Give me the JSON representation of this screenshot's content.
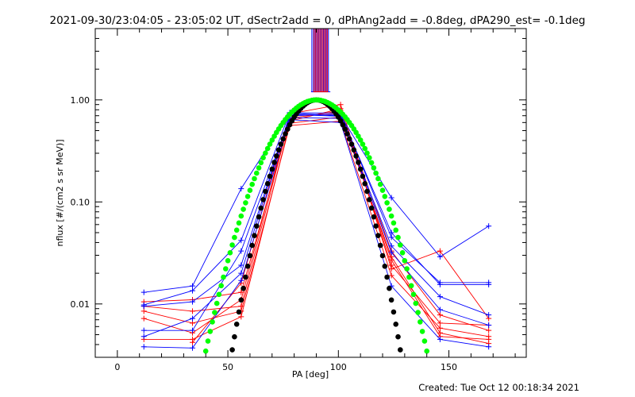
{
  "chart_data": {
    "type": "line",
    "title": "2021-09-30/23:04:05 - 23:05:02 UT, dSectr2add = 0, dPhAng2add = -0.8deg, dPA290_est= -0.1deg",
    "footer": "Created: Tue Oct 12 00:18:34 2021",
    "xlabel": "PA [deg]",
    "ylabel": "nflux [#/(cm2 s sr MeV)]",
    "xlim": [
      -10,
      185
    ],
    "ylim": [
      0.003,
      5
    ],
    "yscale": "log",
    "x_ticks": [
      0,
      50,
      100,
      150
    ],
    "x_tick_labels": [
      "0",
      "50",
      "100",
      "150"
    ],
    "y_ticks": [
      0.01,
      0.1,
      1.0
    ],
    "y_tick_labels": [
      "0.01",
      "0.10",
      "1.00"
    ],
    "grid": false,
    "legend": "none",
    "colors": {
      "sample_a": "#ff0000",
      "sample_b": "#0000ff",
      "fit_narrow": "#000000",
      "fit_wide": "#00ff00"
    },
    "series": [
      {
        "color": "#ff0000",
        "marker": "plus",
        "x": [
          12,
          34,
          56,
          78,
          101,
          124,
          146,
          168
        ],
        "y": [
          0.0105,
          0.011,
          0.013,
          0.62,
          0.82,
          0.024,
          0.0065,
          0.0062
        ]
      },
      {
        "color": "#ff0000",
        "marker": "plus",
        "x": [
          12,
          34,
          56,
          78,
          101,
          124,
          146,
          168
        ],
        "y": [
          0.0085,
          0.0065,
          0.0085,
          0.56,
          0.62,
          0.019,
          0.0058,
          0.0048
        ]
      },
      {
        "color": "#ff0000",
        "marker": "plus",
        "x": [
          12,
          34,
          56,
          78,
          101,
          124,
          146,
          168
        ],
        "y": [
          0.0072,
          0.0052,
          0.011,
          0.7,
          0.73,
          0.027,
          0.0048,
          0.0045
        ]
      },
      {
        "color": "#ff0000",
        "marker": "plus",
        "x": [
          12,
          34,
          56,
          78,
          101,
          124,
          146,
          168
        ],
        "y": [
          0.0095,
          0.0085,
          0.0095,
          0.66,
          0.78,
          0.033,
          0.0078,
          0.0055
        ]
      },
      {
        "color": "#ff0000",
        "marker": "plus",
        "x": [
          12,
          34,
          56,
          78,
          101,
          124,
          146,
          168
        ],
        "y": [
          0.0045,
          0.0045,
          0.0075,
          0.59,
          0.68,
          0.029,
          0.0052,
          0.0041
        ]
      },
      {
        "color": "#ff0000",
        "marker": "plus",
        "x": [
          34,
          56,
          78,
          101,
          124,
          146,
          168
        ],
        "y": [
          0.0042,
          0.016,
          0.73,
          0.9,
          0.022,
          0.033,
          0.0072
        ]
      },
      {
        "color": "#0000ff",
        "marker": "plus",
        "x": [
          12,
          34,
          56,
          78,
          101,
          124,
          146,
          168
        ],
        "y": [
          0.013,
          0.015,
          0.135,
          0.74,
          0.7,
          0.11,
          0.029,
          0.058
        ]
      },
      {
        "color": "#0000ff",
        "marker": "plus",
        "x": [
          12,
          34,
          56,
          78,
          101,
          124,
          146,
          168
        ],
        "y": [
          0.0095,
          0.0105,
          0.024,
          0.7,
          0.72,
          0.05,
          0.0155,
          0.0155
        ]
      },
      {
        "color": "#0000ff",
        "marker": "plus",
        "x": [
          12,
          34,
          56,
          78,
          101,
          124,
          146,
          168
        ],
        "y": [
          0.0055,
          0.0055,
          0.033,
          0.67,
          0.66,
          0.037,
          0.0118,
          0.0078
        ]
      },
      {
        "color": "#0000ff",
        "marker": "plus",
        "x": [
          12,
          34,
          56,
          78,
          101,
          124,
          146,
          168
        ],
        "y": [
          0.0038,
          0.0037,
          0.017,
          0.64,
          0.6,
          0.015,
          0.0045,
          0.0038
        ]
      },
      {
        "color": "#0000ff",
        "marker": "plus",
        "x": [
          12,
          34,
          56,
          78,
          101,
          124,
          146,
          168
        ],
        "y": [
          0.0048,
          0.0072,
          0.02,
          0.72,
          0.69,
          0.032,
          0.0088,
          0.0062
        ]
      },
      {
        "color": "#0000ff",
        "marker": "plus",
        "x": [
          12,
          34,
          56,
          78,
          101,
          124,
          146,
          168
        ],
        "y": [
          0.0098,
          0.0135,
          0.042,
          0.75,
          0.74,
          0.045,
          0.0162,
          0.0162
        ]
      }
    ],
    "fits": [
      {
        "name": "",
        "color": "#000000",
        "marker": "dot",
        "x_range": [
          50,
          145
        ],
        "peak": 1.0,
        "center": 90,
        "width": 16
      },
      {
        "name": "",
        "color": "#00ff00",
        "marker": "dot",
        "x_range": [
          39,
          141
        ],
        "peak": 1.0,
        "center": 90,
        "width": 21
      }
    ],
    "spike_bands": [
      {
        "color": "#0000ff",
        "x_range": [
          88,
          96
        ]
      },
      {
        "color": "#ff0000",
        "x_range": [
          89,
          95
        ]
      }
    ]
  }
}
